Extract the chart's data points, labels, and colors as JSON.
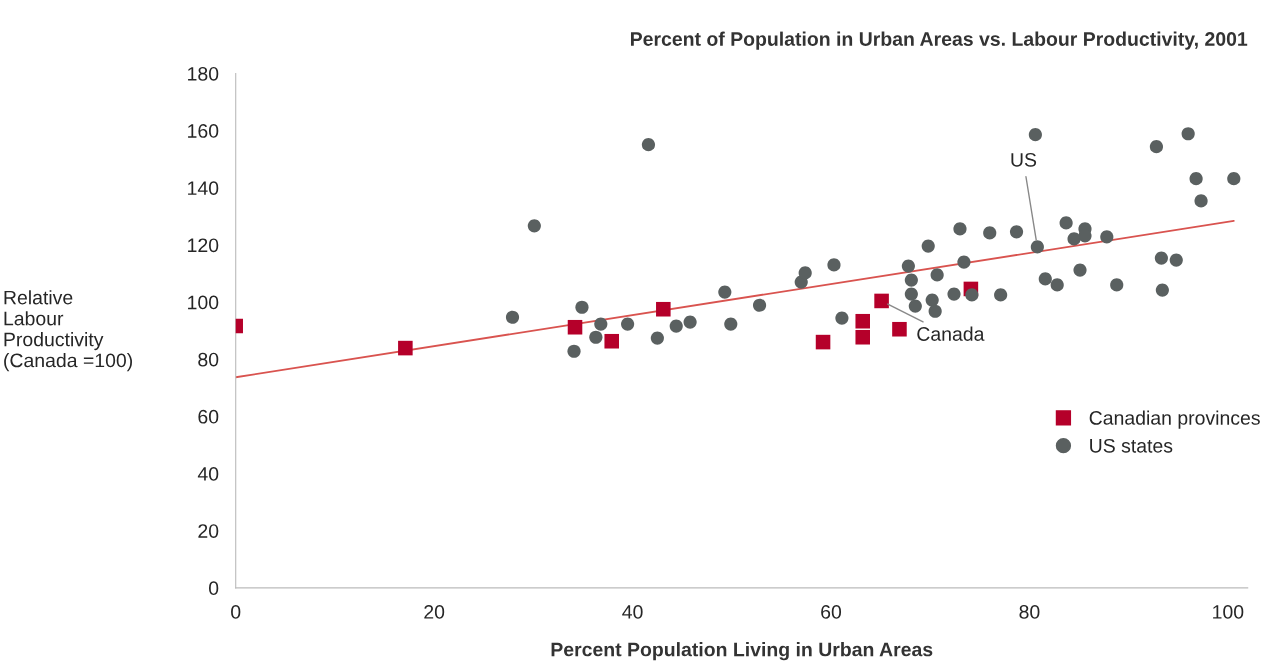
{
  "chart_data": {
    "type": "scatter",
    "title": "Percent of Population in Urban Areas vs. Labour Productivity, 2001",
    "xlabel": "Percent Population Living in Urban Areas",
    "ylabel": "Relative\nLabour\nProductivity\n(Canada =100)",
    "xlim": [
      0,
      102
    ],
    "xticks": [
      0,
      20,
      40,
      60,
      80,
      100
    ],
    "ylim": [
      0,
      180
    ],
    "yticks": [
      0,
      20,
      40,
      60,
      80,
      100,
      120,
      140,
      160,
      180
    ],
    "grid": false,
    "legend": "right",
    "series": [
      {
        "name": "Canadian provinces",
        "color": "#b5002a",
        "marker": "square",
        "x": [
          0,
          17.1,
          34.2,
          37.9,
          43.1,
          59.2,
          63.2,
          63.2,
          65.1,
          66.9,
          74.1
        ],
        "values": [
          91.6,
          83.9,
          91.2,
          86.3,
          97.5,
          86.0,
          93.3,
          87.7,
          100.4,
          90.5,
          104.6
        ]
      },
      {
        "name": "US states",
        "color": "#5a6060",
        "marker": "circle",
        "x": [
          27.9,
          30.1,
          34.9,
          34.1,
          36.3,
          36.8,
          39.5,
          41.6,
          42.5,
          44.4,
          45.8,
          49.3,
          49.9,
          52.8,
          57.0,
          57.4,
          60.3,
          61.1,
          67.8,
          68.1,
          68.1,
          68.5,
          69.8,
          70.2,
          70.5,
          70.7,
          72.4,
          73.0,
          73.4,
          74.2,
          76.0,
          77.1,
          78.7,
          80.6,
          80.8,
          81.6,
          82.8,
          83.7,
          84.5,
          85.6,
          85.6,
          85.1,
          87.8,
          88.8,
          92.8,
          93.3,
          93.4,
          94.8,
          96.0,
          96.8,
          97.3,
          100.6
        ],
        "values": [
          94.7,
          126.7,
          98.2,
          82.8,
          87.7,
          92.3,
          92.3,
          155.1,
          87.4,
          91.6,
          93.0,
          103.5,
          92.3,
          98.9,
          107.0,
          110.2,
          113.0,
          94.4,
          112.6,
          107.7,
          102.8,
          98.6,
          119.6,
          100.7,
          96.8,
          109.5,
          102.8,
          125.6,
          114.0,
          102.5,
          124.2,
          102.5,
          124.6,
          158.6,
          119.3,
          108.1,
          106.0,
          127.7,
          122.1,
          125.6,
          123.2,
          111.2,
          122.8,
          106.0,
          154.4,
          115.4,
          104.2,
          114.7,
          158.9,
          143.2,
          135.4,
          143.2
        ]
      },
      {
        "type": "line",
        "color": "#d9534f",
        "x": [
          0,
          100.6
        ],
        "values": [
          73.7,
          128.4
        ]
      }
    ],
    "annotations": [
      {
        "text": "US",
        "x": 80.8,
        "y": 119.3
      },
      {
        "text": "Canada",
        "x": 65.1,
        "y": 100.4
      }
    ]
  }
}
